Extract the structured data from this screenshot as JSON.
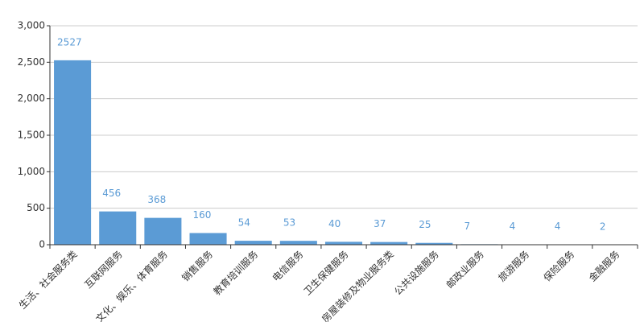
{
  "chart_data": {
    "type": "bar",
    "categories": [
      "生活、社会服务类",
      "互联网服务",
      "文化、娱乐、体育服务",
      "销售服务",
      "教育培训服务",
      "电信服务",
      "卫生保健服务",
      "房屋装修及物业服务类",
      "公共设施服务",
      "邮政业服务",
      "旅游服务",
      "保险服务",
      "金融服务"
    ],
    "values": [
      2527,
      456,
      368,
      160,
      54,
      53,
      40,
      37,
      25,
      7,
      4,
      4,
      2
    ],
    "color": "#5b9bd5",
    "ylim": [
      0,
      3000
    ],
    "yticks": [
      0,
      500,
      {
        "value": 1000,
        "label": "1,000"
      },
      {
        "value": 1500,
        "label": "1,500"
      },
      {
        "value": 2000,
        "label": "2,000"
      },
      {
        "value": 2500,
        "label": "2,500"
      },
      {
        "value": 3000,
        "label": "3,000"
      }
    ],
    "grid": true
  }
}
